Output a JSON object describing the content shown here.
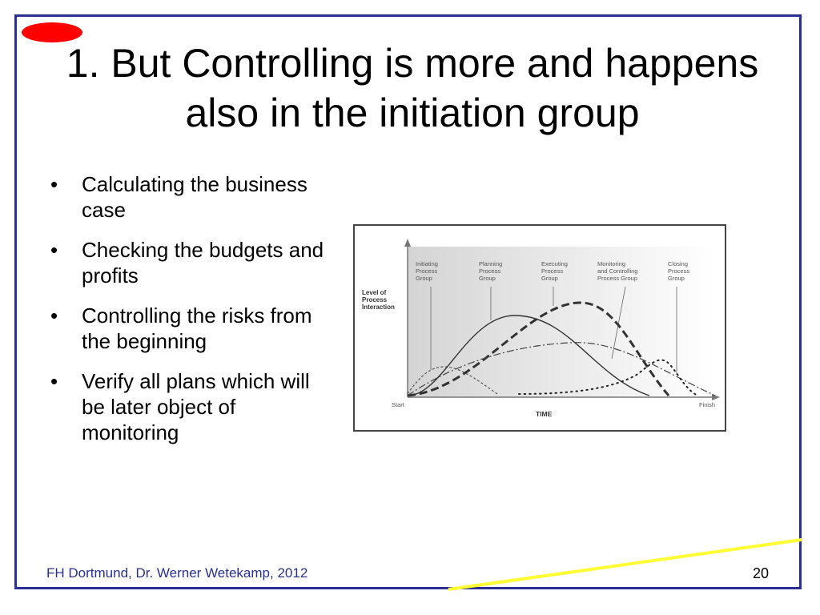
{
  "slide": {
    "title": "1. But Controlling is more and happens also in the initiation group",
    "bullets": [
      "Calculating the business case",
      "Checking the budgets and profits",
      "Controlling the risks from the beginning",
      "Verify all plans which will be later object of monitoring"
    ],
    "footer": "FH Dortmund, Dr. Werner Wetekamp, 2012",
    "page_number": "20",
    "colors": {
      "frame": "#2a2f93",
      "oval": "#ff0000",
      "accent_line": "#ffff33"
    }
  },
  "diagram": {
    "y_label": [
      "Level of",
      "Process",
      "Interaction"
    ],
    "x_label": "TIME",
    "start_label": "Start",
    "finish_label": "Finish",
    "groups": [
      {
        "lines": [
          "Initiating",
          "Process",
          "Group"
        ],
        "style": "dashed-fine"
      },
      {
        "lines": [
          "Planning",
          "Process",
          "Group"
        ],
        "style": "solid"
      },
      {
        "lines": [
          "Executing",
          "Process",
          "Group"
        ],
        "style": "dashed-bold"
      },
      {
        "lines": [
          "Monitoring",
          "and Controlling",
          "Process Group"
        ],
        "style": "dash-dot"
      },
      {
        "lines": [
          "Closing",
          "Process",
          "Group"
        ],
        "style": "dotted"
      }
    ]
  }
}
